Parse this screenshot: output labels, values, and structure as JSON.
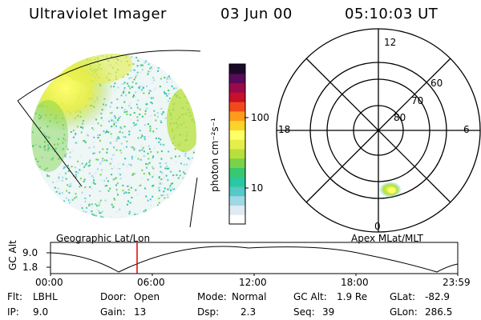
{
  "header": {
    "instrument": "Ultraviolet Imager",
    "date": "03 Jun 00",
    "time": "05:10:03 UT"
  },
  "colorbar": {
    "unit_label": "photon cm⁻²s⁻¹",
    "tick_high": "100",
    "tick_low": "10",
    "colors": [
      "#ffffff",
      "#dfeaf2",
      "#9fd8e4",
      "#55c8c8",
      "#2ac8a0",
      "#38c870",
      "#7ad24a",
      "#b8e03a",
      "#e6ee4a",
      "#ffff66",
      "#ffd22a",
      "#ff9a1a",
      "#f04a1a",
      "#c8102a",
      "#9a0a4a",
      "#5a0a5a",
      "#1a0a2a"
    ]
  },
  "polar_plot": {
    "mlt_labels": {
      "top": "12",
      "left": "18",
      "right": "6",
      "bottom": "0"
    },
    "lat_labels": [
      "60",
      "70",
      "80"
    ]
  },
  "timeline": {
    "left_label": "Geographic Lat/Lon",
    "right_label": "Apex MLat/MLT",
    "y_axis_label": "GC Alt",
    "y_ticks": [
      "9.0",
      "1.8"
    ],
    "x_ticks": [
      "00:00",
      "06:00",
      "12:00",
      "18:00",
      "23:59"
    ],
    "cursor_color": "#e00000"
  },
  "status": {
    "flt_label": "Flt:",
    "flt_value": "LBHL",
    "ip_label": "IP:",
    "ip_value": "9.0",
    "door_label": "Door:",
    "door_value": "Open",
    "gain_label": "Gain:",
    "gain_value": "13",
    "mode_label": "Mode:",
    "mode_value": "Normal",
    "dsp_label": "Dsp:",
    "dsp_value": "2.3",
    "gcalt_label": "GC Alt:",
    "gcalt_value": "1.9 Re",
    "seq_label": "Seq:",
    "seq_value": "39",
    "glat_label": "GLat:",
    "glat_value": "-82.9",
    "glon_label": "GLon:",
    "glon_value": "286.5"
  }
}
